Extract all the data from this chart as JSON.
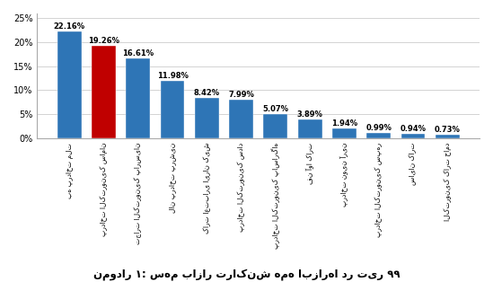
{
  "categories": [
    "به پرداخت ملت",
    "پرداخت الکترونیک سامان",
    "تجارت الکترونیک پارسیان",
    "لان پرداخت پرشین",
    "کارت اعتباری ایران کیش",
    "پرداخت الکترونیک سداد",
    "پرداخت الکترونیک پاسارگاه",
    "فن آوا کارت",
    "پرداخت نوین آرین",
    "پرداخت الکترونیک سپهر",
    "سایان کارت",
    "الکترونیک کارت حامد"
  ],
  "values": [
    22.16,
    19.26,
    16.61,
    11.98,
    8.42,
    7.99,
    5.07,
    3.89,
    1.94,
    0.99,
    0.94,
    0.73
  ],
  "bar_colors": [
    "#2E75B6",
    "#C00000",
    "#2E75B6",
    "#2E75B6",
    "#2E75B6",
    "#2E75B6",
    "#2E75B6",
    "#2E75B6",
    "#2E75B6",
    "#2E75B6",
    "#2E75B6",
    "#2E75B6"
  ],
  "ylim": [
    0,
    26
  ],
  "yticks": [
    0,
    5,
    10,
    15,
    20,
    25
  ],
  "ytick_labels": [
    "0%",
    "5%",
    "10%",
    "15%",
    "20%",
    "25%"
  ],
  "caption": "نمودار ۱: سهم بازار تراکنش همه ابزارها در تیر ۹۹",
  "label_fontsize": 6.0,
  "tick_fontsize": 7.0,
  "caption_fontsize": 8.5
}
